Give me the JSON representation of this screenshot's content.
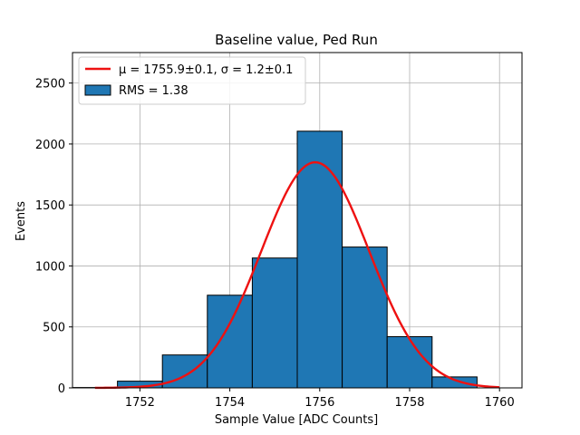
{
  "chart_data": {
    "type": "bar",
    "title": "Baseline value, Ped Run",
    "xlabel": "Sample Value [ADC Counts]",
    "ylabel": "Events",
    "xlim": [
      1750.5,
      1760.5
    ],
    "ylim": [
      0,
      2750
    ],
    "xticks": [
      1752,
      1754,
      1756,
      1758,
      1760
    ],
    "yticks": [
      0,
      500,
      1000,
      1500,
      2000,
      2500
    ],
    "grid": true,
    "legend_position": "top-left",
    "bins": [
      {
        "left": 1750.5,
        "right": 1751.5,
        "count": 3
      },
      {
        "left": 1751.5,
        "right": 1752.5,
        "count": 55
      },
      {
        "left": 1752.5,
        "right": 1753.5,
        "count": 270
      },
      {
        "left": 1753.5,
        "right": 1754.5,
        "count": 760
      },
      {
        "left": 1754.5,
        "right": 1755.5,
        "count": 1065
      },
      {
        "left": 1755.5,
        "right": 1756.5,
        "count": 2105
      },
      {
        "left": 1756.5,
        "right": 1757.5,
        "count": 1155
      },
      {
        "left": 1757.5,
        "right": 1758.5,
        "count": 420
      },
      {
        "left": 1758.5,
        "right": 1759.5,
        "count": 90
      }
    ],
    "histogram_name": "RMS = 1.38",
    "fit": {
      "name": "μ = 1755.9±0.1, σ = 1.2±0.1",
      "mu": 1755.9,
      "sigma": 1.2,
      "amplitude": 1850,
      "x_range": [
        1751,
        1760
      ]
    },
    "colors": {
      "bar_fill": "#1f77b4",
      "bar_edge": "#000000",
      "fit_line": "#ee1111",
      "grid": "#b0b0b0"
    }
  }
}
